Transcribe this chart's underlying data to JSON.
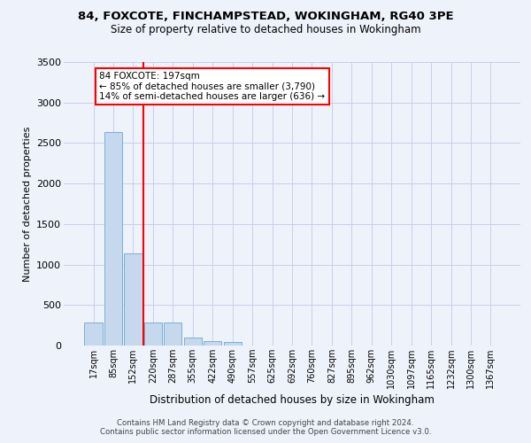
{
  "title1": "84, FOXCOTE, FINCHAMPSTEAD, WOKINGHAM, RG40 3PE",
  "title2": "Size of property relative to detached houses in Wokingham",
  "xlabel": "Distribution of detached houses by size in Wokingham",
  "ylabel": "Number of detached properties",
  "categories": [
    "17sqm",
    "85sqm",
    "152sqm",
    "220sqm",
    "287sqm",
    "355sqm",
    "422sqm",
    "490sqm",
    "557sqm",
    "625sqm",
    "692sqm",
    "760sqm",
    "827sqm",
    "895sqm",
    "962sqm",
    "1030sqm",
    "1097sqm",
    "1165sqm",
    "1232sqm",
    "1300sqm",
    "1367sqm"
  ],
  "values": [
    280,
    2640,
    1140,
    285,
    285,
    100,
    60,
    40,
    0,
    0,
    0,
    0,
    0,
    0,
    0,
    0,
    0,
    0,
    0,
    0,
    0
  ],
  "bar_color": "#c5d8ed",
  "bar_edge_color": "#7aafd4",
  "vline_x_idx": 2,
  "marker_label": "84 FOXCOTE: 197sqm",
  "annotation_line1": "← 85% of detached houses are smaller (3,790)",
  "annotation_line2": "14% of semi-detached houses are larger (636) →",
  "annotation_box_color": "white",
  "annotation_box_edge": "red",
  "vline_color": "red",
  "footer1": "Contains HM Land Registry data © Crown copyright and database right 2024.",
  "footer2": "Contains public sector information licensed under the Open Government Licence v3.0.",
  "bg_color": "#eef2fb",
  "grid_color": "#c8cfe8",
  "ylim": [
    0,
    3500
  ],
  "yticks": [
    0,
    500,
    1000,
    1500,
    2000,
    2500,
    3000,
    3500
  ]
}
